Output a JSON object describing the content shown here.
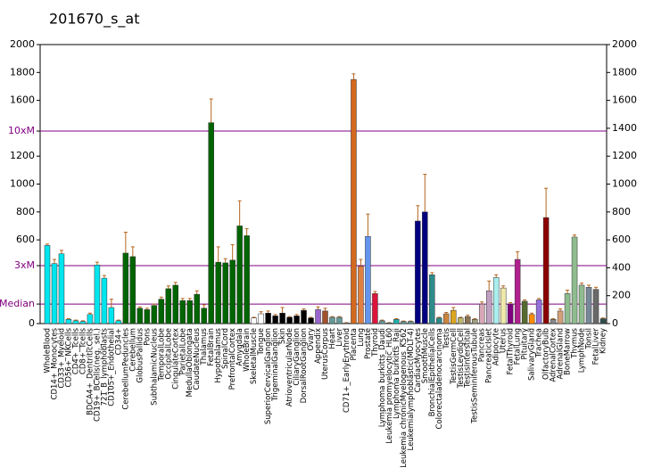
{
  "chart_data": {
    "type": "bar",
    "title": "201670_s_at",
    "categories": [
      "WholeBlood",
      "CD14+_Monocytes",
      "CD33+_Myeloid",
      "CD56+_NKCells",
      "CD4+_Tcells",
      "CD8+_Tcells",
      "BDCA4+_DentriticCells",
      "CD19+_BCells(neg._sel.)",
      "721_B_lymphoblasts",
      "CD105+_Endothelial",
      "CD34+",
      "CerebellumPeduncles",
      "Cerebellum",
      "GlobusPallidus",
      "Pons",
      "SubthalamicNucleus",
      "TemporalLobe",
      "OccipitalLobe",
      "CingulateCortex",
      "ParietalLobe",
      "MedullaOblongata",
      "CaudateNucleus",
      "Thalamus",
      "FetalBrain",
      "Hypothalamus",
      "SpinalCord",
      "PrefrontalCortex",
      "Amygdala",
      "WholeBrain",
      "SkeletalMuscle",
      "Tongue",
      "SuperiorCervicalGanglion",
      "TrigeminalGanglion",
      "Skin",
      "AtrioventricularNode",
      "CiliaryGanglion",
      "DorsalRootGanglion",
      "Ovary",
      "Appendix",
      "UterusCorpus",
      "Heart",
      "Liver",
      "CD71+_EarlyErythroid",
      "Placenta",
      "Lung",
      "Prostate",
      "Thyroid",
      "Lymphoma burkitts_Daudi",
      "Leukemia promyelocytic_HL60",
      "Lymphoma burkitts_Raji",
      "Leukemia chronicMyelogenous_K562",
      "Leukemialymphoblastic(MOLT-4)",
      "CardiacMyocytes",
      "SmoothMuscle",
      "BronchialEpithelialCells",
      "Colorectaladenocarcinoma",
      "Testis",
      "TestisGermCell",
      "TestisLeydigCell",
      "TestisInterstitial",
      "TestisSeminiferousTubule",
      "Pancreas",
      "PancreaticIslet",
      "Adipocyte",
      "Uterus",
      "FetalThyroid",
      "FetalLung",
      "Pituitary",
      "SalivaryGland",
      "Trachea",
      "OlfactoryBulb",
      "AdrenalCortex",
      "AdrenalGland",
      "BoneMarrow",
      "Thymus",
      "LymphNode",
      "Tonsil",
      "FetalLiver",
      "Kidney"
    ],
    "values": [
      560,
      430,
      500,
      30,
      20,
      15,
      65,
      420,
      325,
      115,
      20,
      505,
      480,
      110,
      100,
      130,
      175,
      250,
      275,
      165,
      165,
      210,
      110,
      1440,
      440,
      435,
      455,
      700,
      630,
      40,
      70,
      75,
      55,
      75,
      45,
      55,
      95,
      40,
      100,
      90,
      45,
      45,
      5,
      1750,
      410,
      625,
      215,
      20,
      5,
      30,
      15,
      15,
      735,
      800,
      350,
      40,
      70,
      95,
      40,
      50,
      30,
      140,
      235,
      330,
      255,
      140,
      460,
      160,
      65,
      170,
      760,
      30,
      90,
      215,
      620,
      275,
      260,
      245,
      35
    ],
    "errors": [
      10,
      30,
      25,
      5,
      5,
      5,
      10,
      20,
      20,
      60,
      5,
      150,
      70,
      10,
      10,
      10,
      15,
      20,
      20,
      15,
      15,
      25,
      25,
      170,
      110,
      30,
      110,
      180,
      50,
      5,
      15,
      15,
      10,
      40,
      5,
      10,
      10,
      5,
      20,
      20,
      5,
      5,
      2,
      40,
      50,
      160,
      15,
      5,
      2,
      5,
      3,
      3,
      110,
      270,
      15,
      5,
      10,
      20,
      5,
      10,
      5,
      15,
      70,
      20,
      15,
      10,
      55,
      10,
      10,
      10,
      210,
      5,
      15,
      25,
      15,
      15,
      15,
      15,
      5
    ],
    "colors": [
      "#00e5ee",
      "#00e5ee",
      "#00e5ee",
      "#00e5ee",
      "#00e5ee",
      "#00e5ee",
      "#00e5ee",
      "#00e5ee",
      "#00e5ee",
      "#00e5ee",
      "#00e5ee",
      "#006400",
      "#006400",
      "#006400",
      "#006400",
      "#006400",
      "#006400",
      "#006400",
      "#006400",
      "#006400",
      "#006400",
      "#006400",
      "#006400",
      "#006400",
      "#006400",
      "#006400",
      "#006400",
      "#006400",
      "#006400",
      "#ffffff",
      "#ffffff",
      "#000000",
      "#000000",
      "#000000",
      "#000000",
      "#000000",
      "#000000",
      "#000000",
      "#9966cc",
      "#a0522d",
      "#669999",
      "#669999",
      "#cccccc",
      "#d2691e",
      "#e08040",
      "#6495ed",
      "#dc143c",
      "#669999",
      "#669999",
      "#20b2aa",
      "#669999",
      "#669999",
      "#000080",
      "#000080",
      "#2e8b8b",
      "#2e8b8b",
      "#cd853f",
      "#daa520",
      "#bdb76b",
      "#8b7355",
      "#a0a080",
      "#d8a8b8",
      "#c0a0c0",
      "#aaeeee",
      "#eee8aa",
      "#800080",
      "#b0208e",
      "#556b2f",
      "#ff8c00",
      "#9370db",
      "#8b0000",
      "#888888",
      "#d2a07a",
      "#8fbc8f",
      "#8fbc8f",
      "#8fbc8f",
      "#778899",
      "#696969",
      "#2f4f4f"
    ],
    "error_color": "#b5651d",
    "ylim": [
      0,
      2000
    ],
    "yticks": [
      0,
      600,
      800,
      1000,
      1200,
      1600,
      1800,
      2000
    ],
    "y2lim": [
      0,
      2000
    ],
    "y2ticks": [
      0,
      200,
      400,
      600,
      800,
      1000,
      1200,
      1400,
      1600,
      1800,
      2000
    ],
    "reference_lines": [
      {
        "label": "10xM",
        "value": 1380
      },
      {
        "label": "3xM",
        "value": 415
      },
      {
        "label": "Median",
        "value": 140
      }
    ],
    "reference_color": "#800080"
  }
}
